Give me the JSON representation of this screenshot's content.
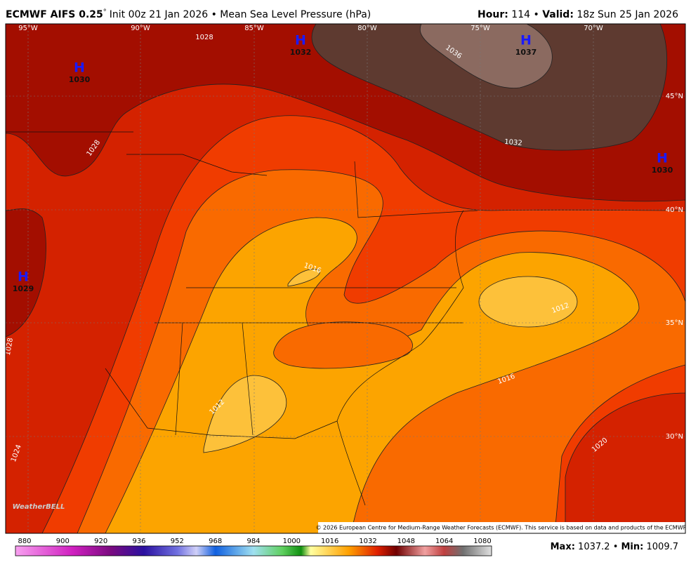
{
  "header": {
    "model": "ECMWF AIFS 0.25",
    "degree": "°",
    "description": "Init 00z 21 Jan 2026 • Mean Sea Level Pressure (hPa)",
    "hour_label": "Hour:",
    "hour": 114,
    "separator": "•",
    "valid_label": "Valid:",
    "valid": "18z Sun 25 Jan 2026"
  },
  "map": {
    "longitudes": [
      "95°W",
      "90°W",
      "85°W",
      "80°W",
      "75°W",
      "70°W"
    ],
    "latitudes": [
      "45°N",
      "40°N",
      "35°N",
      "30°N"
    ],
    "centers": [
      {
        "symbol": "H",
        "value": 1030
      },
      {
        "symbol": "H",
        "value": 1032
      },
      {
        "symbol": "H",
        "value": 1037
      },
      {
        "symbol": "H",
        "value": 1030
      },
      {
        "symbol": "H",
        "value": 1029
      }
    ],
    "contour_labels": [
      1028,
      1028,
      1036,
      1032,
      1016,
      1012,
      1016,
      1020,
      1012,
      1024,
      1028
    ],
    "logo": "WeatherBELL",
    "copyright": "© 2026 European Centre for Medium-Range Weather Forecasts (ECMWF). This service is based on data and products of the ECMWF."
  },
  "colorbar": {
    "ticks": [
      880,
      900,
      920,
      936,
      952,
      968,
      984,
      1000,
      1016,
      1032,
      1048,
      1064,
      1080
    ]
  },
  "footer": {
    "max_label": "Max:",
    "max": 1037.2,
    "separator": "•",
    "min_label": "Min:",
    "min": 1009.7
  }
}
